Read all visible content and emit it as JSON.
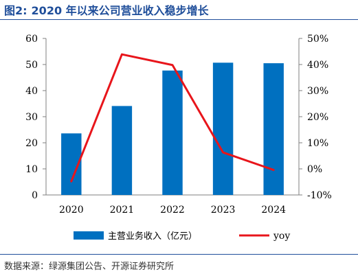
{
  "figure": {
    "label": "图2:",
    "title": "2020 年以来公司营业收入稳步增长",
    "source": "数据来源：绿源集团公告、开源证券研究所"
  },
  "chart_data": {
    "type": "bar",
    "categories": [
      "2020",
      "2021",
      "2022",
      "2023",
      "2024"
    ],
    "series": [
      {
        "name": "主营业务收入（亿元）",
        "type": "bar",
        "axis": "left",
        "color": "#0070c0",
        "values": [
          23.6,
          34.1,
          47.7,
          50.7,
          50.5
        ]
      },
      {
        "name": "yoy",
        "type": "line",
        "axis": "right",
        "color": "#e8151b",
        "values": [
          -4.8,
          43.9,
          39.8,
          6.3,
          -0.4
        ]
      }
    ],
    "left_axis": {
      "ylim": [
        0,
        60
      ],
      "ticks": [
        "0",
        "10",
        "20",
        "30",
        "40",
        "50",
        "60"
      ]
    },
    "right_axis": {
      "ylim": [
        -10,
        50
      ],
      "ticks": [
        "-10%",
        "0%",
        "10%",
        "20%",
        "30%",
        "40%",
        "50%"
      ]
    },
    "legend_position": "bottom",
    "grid": false
  }
}
